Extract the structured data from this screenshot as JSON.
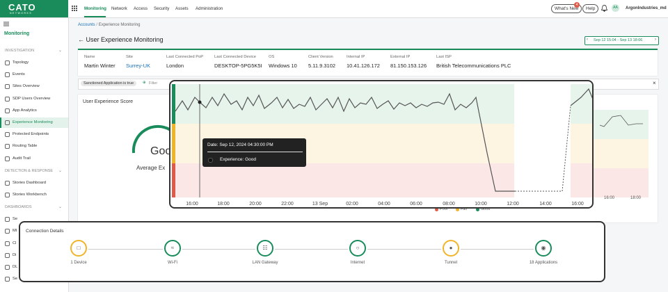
{
  "topbar": {
    "logo": "CATO",
    "logo_sub": "NETWORKS",
    "nav": [
      "Monitoring",
      "Network",
      "Access",
      "Security",
      "Assets",
      "Administration"
    ],
    "whats_new": "What's New",
    "badge": "4",
    "help": "Help",
    "avatar": "AA",
    "account": "ArgonIndustries_md"
  },
  "sidebar": {
    "section": "Monitoring",
    "groups": [
      {
        "title": "INVESTIGATION",
        "items": [
          "Topology",
          "Events",
          "Sites Overview",
          "SDP Users Overview",
          "App Analytics",
          "Experience Monitoring",
          "Protected Endpoints",
          "Routing Table",
          "Audit Trail"
        ]
      },
      {
        "title": "DETECTION & RESPONSE",
        "items": [
          "Stories Dashboard",
          "Stories Workbench"
        ]
      },
      {
        "title": "DASHBOARDS",
        "items": [
          "Se",
          "MI",
          "Cl",
          "Di",
          "DL",
          "Se"
        ]
      }
    ],
    "active": "Experience Monitoring"
  },
  "breadcrumb": [
    "Accounts",
    "Experience Monitoring"
  ],
  "page_title": "User Experience Monitoring",
  "date_range": "Sep 12 15:04 - Sep 13 18:06",
  "info": [
    {
      "label": "Name",
      "value": "Martin Winter"
    },
    {
      "label": "Site",
      "value": "Surrey-UK"
    },
    {
      "label": "Last Connected PoP",
      "value": "London"
    },
    {
      "label": "Last Connected Device",
      "value": "DESKTOP-5PG5K5I"
    },
    {
      "label": "OS",
      "value": "Windows 10"
    },
    {
      "label": "Client Version",
      "value": "5.11.9.3102"
    },
    {
      "label": "Internal IP",
      "value": "10.41.126.172"
    },
    {
      "label": "External IP",
      "value": "81.150.153.126"
    },
    {
      "label": "Last ISP",
      "value": "British Telecommunications PLC"
    }
  ],
  "filter": {
    "chip": "Sanctioned Application is true",
    "placeholder": "Filter"
  },
  "score_card": {
    "title": "User Experience Score",
    "gauge_label": "Good",
    "average": "Average Ex",
    "x_labels": [
      "16:00",
      "18:00"
    ],
    "legend": [
      "Poor",
      "Fair",
      "Good"
    ]
  },
  "zoom_chart": {
    "x_labels": [
      "16:00",
      "18:00",
      "20:00",
      "22:00",
      "13 Sep",
      "02:00",
      "04:00",
      "06:00",
      "08:00",
      "10:00",
      "12:00",
      "14:00",
      "16:00"
    ],
    "tooltip": {
      "date": "Date: Sep 12, 2024 04:30:00 PM",
      "experience": "Experience: Good"
    }
  },
  "connection": {
    "title": "Connection Details",
    "nodes": [
      "1 Device",
      "Wi-Fi",
      "LAN Gateway",
      "Internet",
      "Tunnel",
      "18 Applications"
    ]
  }
}
